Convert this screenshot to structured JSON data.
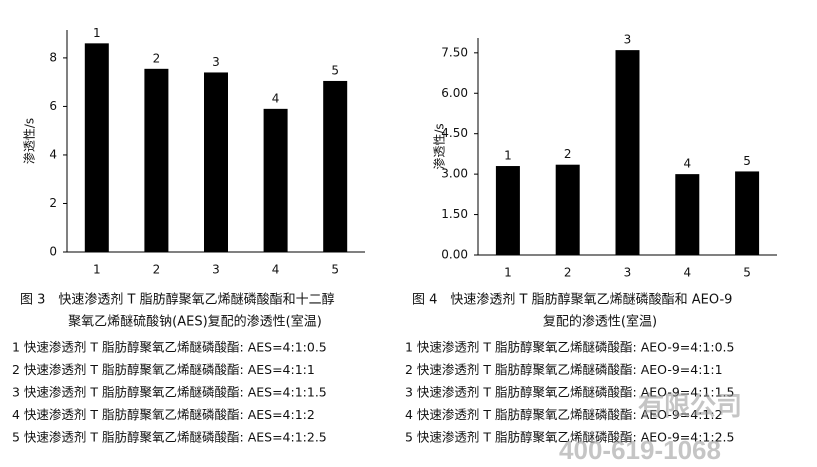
{
  "chart_data": [
    {
      "type": "bar",
      "y_label": "渗透性/s",
      "categories": [
        "1",
        "2",
        "3",
        "4",
        "5"
      ],
      "values": [
        8.6,
        7.55,
        7.4,
        5.9,
        7.05
      ],
      "bar_labels": [
        "1",
        "2",
        "3",
        "4",
        "5"
      ],
      "color": "#000000",
      "ylim": [
        0,
        9.15
      ],
      "yticks": [
        0,
        2,
        4,
        6,
        8
      ],
      "caption": [
        "图 3　快速渗透剂 T 脂肪醇聚氧乙烯醚磷酸酯和十二醇",
        "聚氧乙烯醚硫酸钠(AES)复配的渗透性(室温)"
      ],
      "notes": [
        "1 快速渗透剂 T 脂肪醇聚氧乙烯醚磷酸酯: AES=4:1:0.5",
        "2 快速渗透剂 T 脂肪醇聚氧乙烯醚磷酸酯: AES=4:1:1",
        "3 快速渗透剂 T 脂肪醇聚氧乙烯醚磷酸酯: AES=4:1:1.5",
        "4 快速渗透剂 T 脂肪醇聚氧乙烯醚磷酸酯: AES=4:1:2",
        "5 快速渗透剂 T 脂肪醇聚氧乙烯醚磷酸酯: AES=4:1:2.5"
      ]
    },
    {
      "type": "bar",
      "y_label": "渗透性/s",
      "categories": [
        "1",
        "2",
        "3",
        "4",
        "5"
      ],
      "values": [
        3.3,
        3.35,
        7.6,
        3.0,
        3.1
      ],
      "bar_labels": [
        "1",
        "2",
        "3",
        "4",
        "5"
      ],
      "color": "#000000",
      "ylim": [
        0,
        8.05
      ],
      "yticks": [
        {
          "value": 0,
          "label": "0.00"
        },
        {
          "value": 1.5,
          "label": "1.50"
        },
        {
          "value": 3,
          "label": "3.00"
        },
        {
          "value": 4.5,
          "label": "4.50"
        },
        {
          "value": 6,
          "label": "6.00"
        },
        {
          "value": 7.5,
          "label": "7.50"
        }
      ],
      "caption": [
        "图 4　快速渗透剂 T 脂肪醇聚氧乙烯醚磷酸酯和 AEO-9",
        "复配的渗透性(室温)"
      ],
      "notes": [
        "1 快速渗透剂 T 脂肪醇聚氧乙烯醚磷酸酯: AEO-9=4:1:0.5",
        "2 快速渗透剂 T 脂肪醇聚氧乙烯醚磷酸酯: AEO-9=4:1:1",
        "3 快速渗透剂 T 脂肪醇聚氧乙烯醚磷酸酯: AEO-9=4:1:1.5",
        "4 快速渗透剂 T 脂肪醇聚氧乙烯醚磷酸酯: AEO-9=4:1:2",
        "5 快速渗透剂 T 脂肪醇聚氧乙烯醚磷酸酯: AEO-9=4:1:2.5"
      ]
    }
  ],
  "watermark": [
    "有限公司",
    "400-619-1068"
  ]
}
